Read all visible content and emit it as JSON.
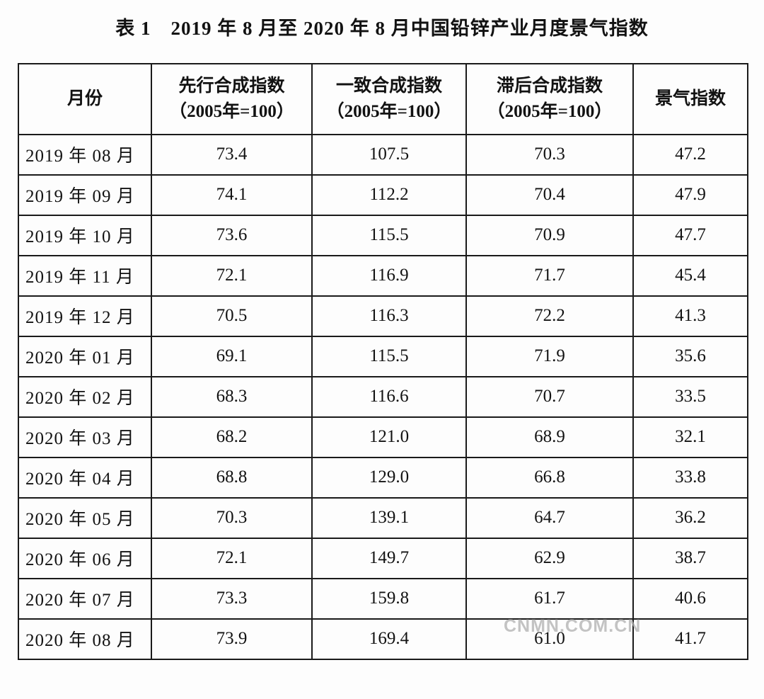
{
  "title": "表 1　2019 年 8 月至 2020 年 8 月中国铅锌产业月度景气指数",
  "watermark": "CNMN.COM.CN",
  "colors": {
    "background": "#fdfdfd",
    "border": "#1a1a1a",
    "text": "#121212",
    "watermark": "#afafaf"
  },
  "table": {
    "columns": [
      {
        "label": "月份",
        "sub": ""
      },
      {
        "label": "先行合成指数",
        "sub": "（2005年=100）"
      },
      {
        "label": "一致合成指数",
        "sub": "（2005年=100）"
      },
      {
        "label": "滞后合成指数",
        "sub": "（2005年=100）"
      },
      {
        "label": "景气指数",
        "sub": ""
      }
    ],
    "rows": [
      {
        "month": "2019 年 08 月",
        "leading": "73.4",
        "coincident": "107.5",
        "lagging": "70.3",
        "prosperity": "47.2"
      },
      {
        "month": "2019 年 09 月",
        "leading": "74.1",
        "coincident": "112.2",
        "lagging": "70.4",
        "prosperity": "47.9"
      },
      {
        "month": "2019 年 10 月",
        "leading": "73.6",
        "coincident": "115.5",
        "lagging": "70.9",
        "prosperity": "47.7"
      },
      {
        "month": "2019 年 11 月",
        "leading": "72.1",
        "coincident": "116.9",
        "lagging": "71.7",
        "prosperity": "45.4"
      },
      {
        "month": "2019 年 12 月",
        "leading": "70.5",
        "coincident": "116.3",
        "lagging": "72.2",
        "prosperity": "41.3"
      },
      {
        "month": "2020 年 01 月",
        "leading": "69.1",
        "coincident": "115.5",
        "lagging": "71.9",
        "prosperity": "35.6"
      },
      {
        "month": "2020 年 02 月",
        "leading": "68.3",
        "coincident": "116.6",
        "lagging": "70.7",
        "prosperity": "33.5"
      },
      {
        "month": "2020 年 03 月",
        "leading": "68.2",
        "coincident": "121.0",
        "lagging": "68.9",
        "prosperity": "32.1"
      },
      {
        "month": "2020 年 04 月",
        "leading": "68.8",
        "coincident": "129.0",
        "lagging": "66.8",
        "prosperity": "33.8"
      },
      {
        "month": "2020 年 05 月",
        "leading": "70.3",
        "coincident": "139.1",
        "lagging": "64.7",
        "prosperity": "36.2"
      },
      {
        "month": "2020 年 06 月",
        "leading": "72.1",
        "coincident": "149.7",
        "lagging": "62.9",
        "prosperity": "38.7"
      },
      {
        "month": "2020 年 07 月",
        "leading": "73.3",
        "coincident": "159.8",
        "lagging": "61.7",
        "prosperity": "40.6"
      },
      {
        "month": "2020 年 08 月",
        "leading": "73.9",
        "coincident": "169.4",
        "lagging": "61.0",
        "prosperity": "41.7"
      }
    ]
  },
  "chart_data": {
    "type": "table",
    "title": "表 1　2019 年 8 月至 2020 年 8 月中国铅锌产业月度景气指数",
    "categories": [
      "2019-08",
      "2019-09",
      "2019-10",
      "2019-11",
      "2019-12",
      "2020-01",
      "2020-02",
      "2020-03",
      "2020-04",
      "2020-05",
      "2020-06",
      "2020-07",
      "2020-08"
    ],
    "series": [
      {
        "name": "先行合成指数（2005年=100）",
        "values": [
          73.4,
          74.1,
          73.6,
          72.1,
          70.5,
          69.1,
          68.3,
          68.2,
          68.8,
          70.3,
          72.1,
          73.3,
          73.9
        ]
      },
      {
        "name": "一致合成指数（2005年=100）",
        "values": [
          107.5,
          112.2,
          115.5,
          116.9,
          116.3,
          115.5,
          116.6,
          121.0,
          129.0,
          139.1,
          149.7,
          159.8,
          169.4
        ]
      },
      {
        "name": "滞后合成指数（2005年=100）",
        "values": [
          70.3,
          70.4,
          70.9,
          71.7,
          72.2,
          71.9,
          70.7,
          68.9,
          66.8,
          64.7,
          62.9,
          61.7,
          61.0
        ]
      },
      {
        "name": "景气指数",
        "values": [
          47.2,
          47.9,
          47.7,
          45.4,
          41.3,
          35.6,
          33.5,
          32.1,
          33.8,
          36.2,
          38.7,
          40.6,
          41.7
        ]
      }
    ]
  }
}
